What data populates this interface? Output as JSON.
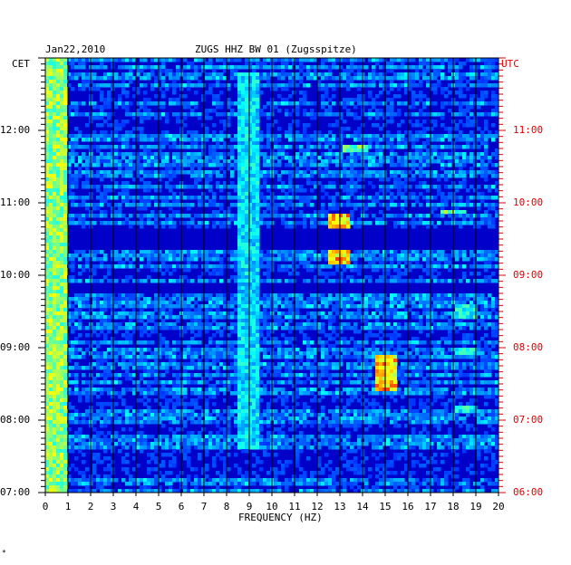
{
  "header": {
    "date": "Jan22,2010",
    "station": "ZUGS HHZ BW 01 (Zugsspitze)",
    "left_zone": "CET",
    "right_zone": "UTC"
  },
  "footer": {
    "mark": "*"
  },
  "chart_data": {
    "type": "heatmap",
    "title": "ZUGS HHZ BW 01 (Zugsspitze)",
    "xlabel": "FREQUENCY (HZ)",
    "ylabel_left": "CET",
    "ylabel_right": "UTC",
    "xlim": [
      0,
      20
    ],
    "x_ticks": [
      "0",
      "1",
      "2",
      "3",
      "4",
      "5",
      "6",
      "7",
      "8",
      "9",
      "10",
      "11",
      "12",
      "13",
      "14",
      "15",
      "16",
      "17",
      "18",
      "19",
      "20"
    ],
    "y_range_cet": [
      "07:00",
      "13:00"
    ],
    "y_ticks_left": [
      "12:00",
      "11:00",
      "10:00",
      "09:00",
      "08:00",
      "07:00"
    ],
    "y_ticks_right": [
      "11:00",
      "10:00",
      "09:00",
      "08:00",
      "07:00",
      "06:00"
    ],
    "colormap": [
      "#000080",
      "#0000ff",
      "#00ffff",
      "#ffff00",
      "#ff0000"
    ],
    "background_color": "#0000c8",
    "grid": true,
    "hot_spots": [
      {
        "f": 0.4,
        "t0": 7.0,
        "t1": 13.0,
        "level": 0.75
      },
      {
        "f": 9.0,
        "t0": 7.6,
        "t1": 12.8,
        "level": 0.55
      },
      {
        "f": 12.9,
        "t0": 10.15,
        "t1": 10.35,
        "level": 0.95
      },
      {
        "f": 12.9,
        "t0": 10.65,
        "t1": 10.85,
        "level": 0.95
      },
      {
        "f": 15.0,
        "t0": 8.4,
        "t1": 8.9,
        "level": 0.95
      },
      {
        "f": 18.5,
        "t0": 8.1,
        "t1": 8.2,
        "level": 0.6
      },
      {
        "f": 18.5,
        "t0": 8.9,
        "t1": 9.0,
        "level": 0.6
      },
      {
        "f": 18.5,
        "t0": 9.4,
        "t1": 9.6,
        "level": 0.6
      },
      {
        "f": 18.0,
        "t0": 10.85,
        "t1": 10.9,
        "level": 0.7
      },
      {
        "f": 13.7,
        "t0": 11.7,
        "t1": 11.8,
        "level": 0.7
      }
    ]
  }
}
